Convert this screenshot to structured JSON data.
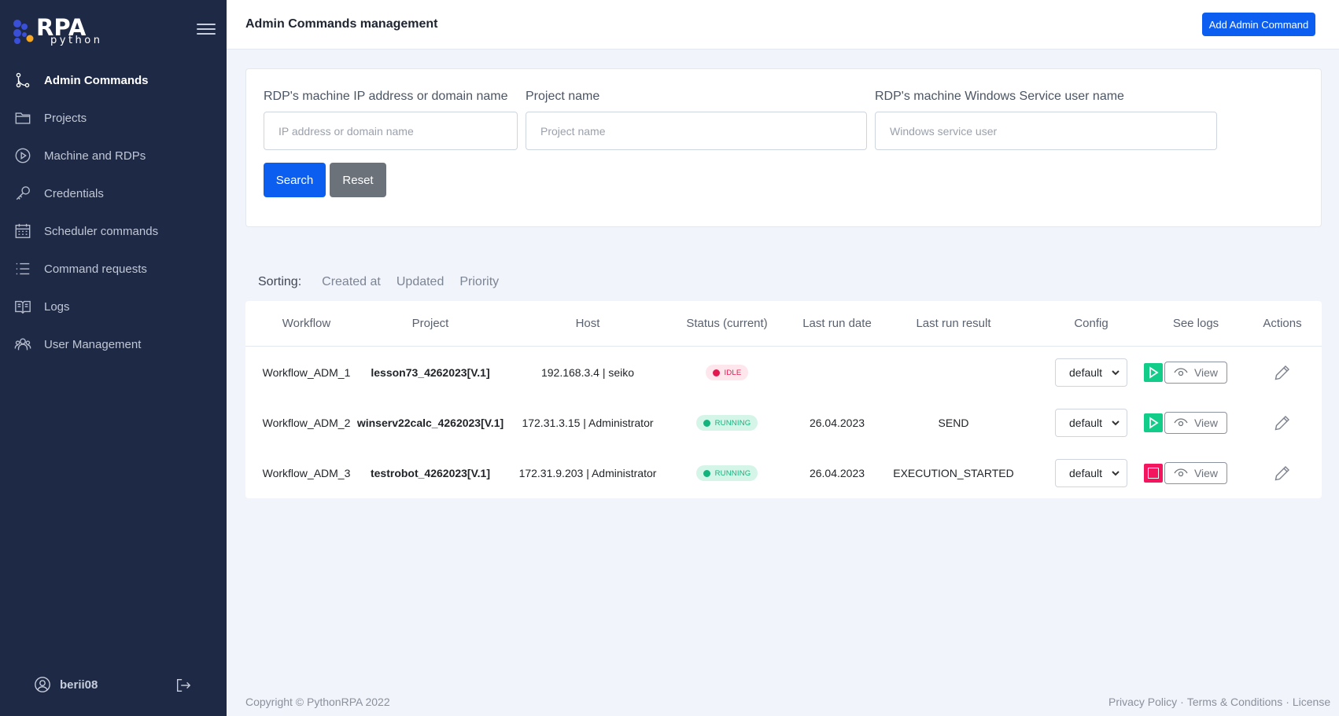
{
  "app": {
    "logo_main": "RPA",
    "logo_sub": "python"
  },
  "sidebar": {
    "items": [
      {
        "label": "Admin Commands",
        "icon": "branch-icon",
        "active": true
      },
      {
        "label": "Projects",
        "icon": "folder-icon",
        "active": false
      },
      {
        "label": "Machine and RDPs",
        "icon": "play-circle-icon",
        "active": false
      },
      {
        "label": "Credentials",
        "icon": "key-icon",
        "active": false
      },
      {
        "label": "Scheduler commands",
        "icon": "calendar-icon",
        "active": false
      },
      {
        "label": "Command requests",
        "icon": "list-icon",
        "active": false
      },
      {
        "label": "Logs",
        "icon": "book-icon",
        "active": false
      },
      {
        "label": "User Management",
        "icon": "users-icon",
        "active": false
      }
    ],
    "user": "berii08"
  },
  "header": {
    "title": "Admin Commands management",
    "add_button": "Add Admin Command"
  },
  "filters": {
    "ip_label": "RDP's machine IP address or domain name",
    "ip_placeholder": "IP address or domain name",
    "ip_value": "",
    "project_label": "Project name",
    "project_placeholder": "Project name",
    "project_value": "",
    "user_label": "RDP's machine Windows Service user name",
    "user_placeholder": "Windows service user",
    "user_value": "",
    "search_button": "Search",
    "reset_button": "Reset"
  },
  "sorting": {
    "label": "Sorting:",
    "options": [
      "Created at",
      "Updated",
      "Priority"
    ]
  },
  "table": {
    "columns": [
      "Workflow",
      "Project",
      "Host",
      "Status (current)",
      "Last run date",
      "Last run result",
      "Config",
      "",
      "See logs",
      "Actions"
    ],
    "rows": [
      {
        "workflow": "Workflow_ADM_1",
        "project": "lesson73_4262023[V.1]",
        "host": "192.168.3.4 | seiko",
        "status": "IDLE",
        "status_kind": "idle",
        "last_run_date": "",
        "last_run_result": "",
        "config": "default",
        "run_action": "play",
        "view": "View"
      },
      {
        "workflow": "Workflow_ADM_2",
        "project": "winserv22calc_4262023[V.1]",
        "host": "172.31.3.15 | Administrator",
        "status": "RUNNING",
        "status_kind": "running",
        "last_run_date": "26.04.2023",
        "last_run_result": "SEND",
        "config": "default",
        "run_action": "play",
        "view": "View"
      },
      {
        "workflow": "Workflow_ADM_3",
        "project": "testrobot_4262023[V.1]",
        "host": "172.31.9.203 | Administrator",
        "status": "RUNNING",
        "status_kind": "running",
        "last_run_date": "26.04.2023",
        "last_run_result": "EXECUTION_STARTED",
        "config": "default",
        "run_action": "stop",
        "view": "View"
      }
    ]
  },
  "footer": {
    "copyright": "Copyright © PythonRPA 2022",
    "links": [
      "Privacy Policy",
      "Terms & Conditions",
      "License"
    ],
    "separator": "·"
  },
  "colors": {
    "sidebar_bg": "#1e2945",
    "primary": "#0b5ef0",
    "secondary": "#6c727a",
    "idle": "#e3174d",
    "running": "#12b37d",
    "play": "#12cc8a",
    "stop": "#f3155e"
  }
}
